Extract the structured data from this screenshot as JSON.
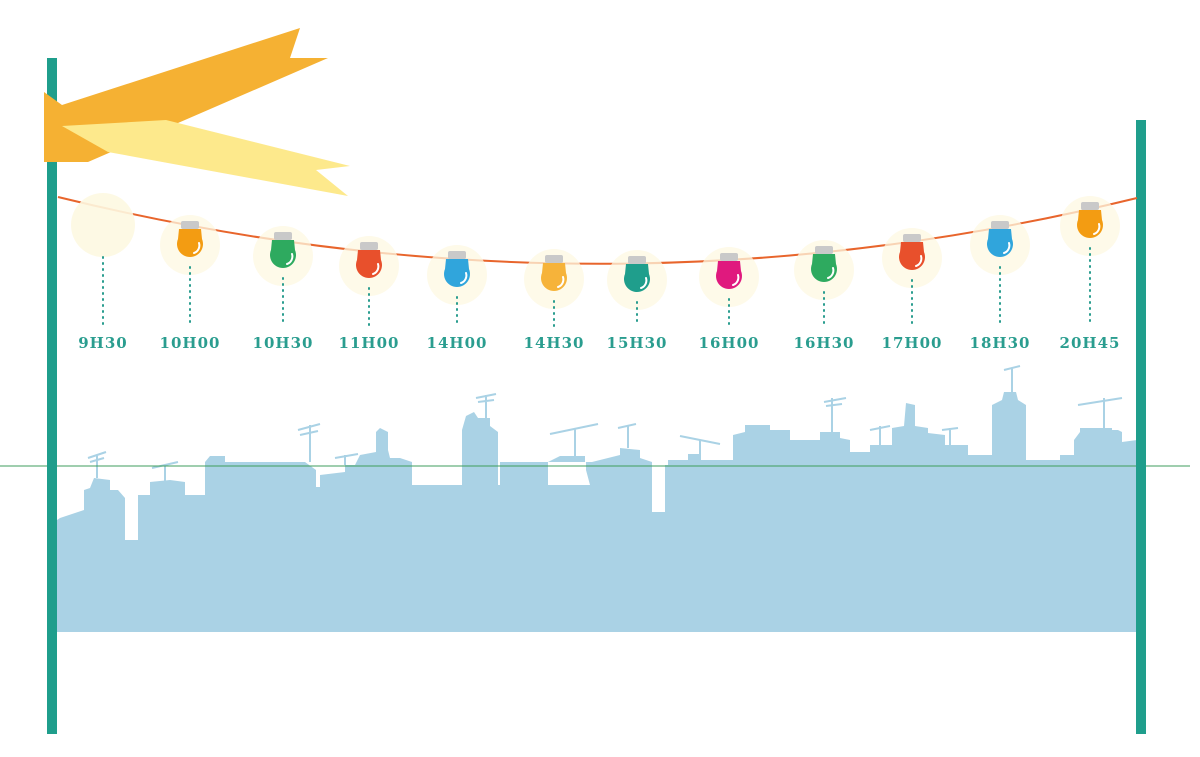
{
  "schedule": {
    "slots": [
      {
        "time": "9H30",
        "bulb_color": "#fffdf0",
        "lit": false
      },
      {
        "time": "10H00",
        "bulb_color": "#f39c12",
        "lit": true
      },
      {
        "time": "10H30",
        "bulb_color": "#2eaa5f",
        "lit": true
      },
      {
        "time": "11H00",
        "bulb_color": "#e8502c",
        "lit": true
      },
      {
        "time": "14H00",
        "bulb_color": "#30a5dc",
        "lit": true
      },
      {
        "time": "14H30",
        "bulb_color": "#f6b33a",
        "lit": true
      },
      {
        "time": "15H30",
        "bulb_color": "#1f9e8c",
        "lit": true
      },
      {
        "time": "16H00",
        "bulb_color": "#e0197e",
        "lit": true
      },
      {
        "time": "16H30",
        "bulb_color": "#2eaa5f",
        "lit": true
      },
      {
        "time": "17H00",
        "bulb_color": "#e8502c",
        "lit": true
      },
      {
        "time": "18H30",
        "bulb_color": "#30a5dc",
        "lit": true
      },
      {
        "time": "20H45",
        "bulb_color": "#f39c12",
        "lit": true
      }
    ]
  },
  "colors": {
    "pole": "#1f9e8c",
    "wire": "#e8652c",
    "skyline": "#aad2e5",
    "label": "#2a9d8f",
    "flag_dark": "#f5b133",
    "flag_light": "#fde98c",
    "bulb_glow": "#fdf8e1",
    "horizon_line": "#3f9e5c"
  },
  "icons": {
    "flag": "flag-ribbon-icon",
    "bulb": "light-bulb-icon",
    "skyline": "city-skyline-icon"
  }
}
